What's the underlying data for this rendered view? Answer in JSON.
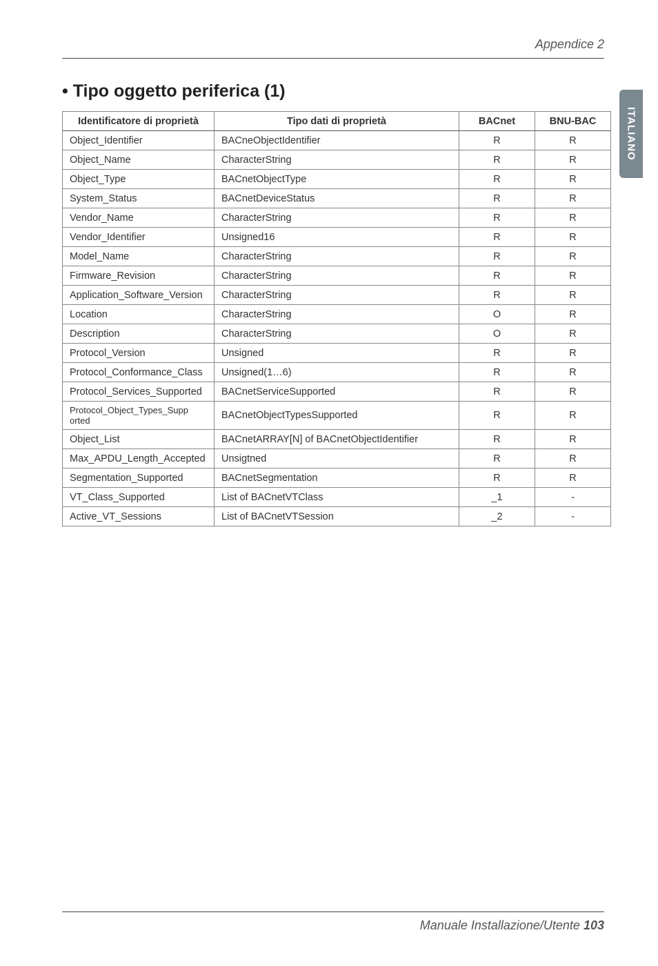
{
  "header": {
    "right": "Appendice 2"
  },
  "sideTab": {
    "label": "ITALIANO"
  },
  "section": {
    "title": "• Tipo oggetto periferica (1)"
  },
  "table": {
    "columns": [
      "Identificatore di proprietà",
      "Tipo dati di proprietà",
      "BACnet",
      "BNU-BAC"
    ],
    "rows": [
      [
        "Object_Identifier",
        "BACneObjectIdentifier",
        "R",
        "R"
      ],
      [
        "Object_Name",
        "CharacterString",
        "R",
        "R"
      ],
      [
        "Object_Type",
        "BACnetObjectType",
        "R",
        "R"
      ],
      [
        "System_Status",
        "BACnetDeviceStatus",
        "R",
        "R"
      ],
      [
        "Vendor_Name",
        "CharacterString",
        "R",
        "R"
      ],
      [
        "Vendor_Identifier",
        "Unsigned16",
        "R",
        "R"
      ],
      [
        "Model_Name",
        "CharacterString",
        "R",
        "R"
      ],
      [
        "Firmware_Revision",
        "CharacterString",
        "R",
        "R"
      ],
      [
        "Application_Software_Version",
        "CharacterString",
        "R",
        "R"
      ],
      [
        "Location",
        "CharacterString",
        "O",
        "R"
      ],
      [
        "Description",
        "CharacterString",
        "O",
        "R"
      ],
      [
        "Protocol_Version",
        "Unsigned",
        "R",
        "R"
      ],
      [
        "Protocol_Conformance_Class",
        "Unsigned(1…6)",
        "R",
        "R"
      ],
      [
        "Protocol_Services_Supported",
        "BACnetServiceSupported",
        "R",
        "R"
      ],
      [
        "Protocol_Object_Types_Supp orted",
        "BACnetObjectTypesSupported",
        "R",
        "R"
      ],
      [
        "Object_List",
        "BACnetARRAY[N] of BACnetObjectIdentifier",
        "R",
        "R"
      ],
      [
        "Max_APDU_Length_Accepted",
        "Unsigtned",
        "R",
        "R"
      ],
      [
        "Segmentation_Supported",
        "BACnetSegmentation",
        "R",
        "R"
      ],
      [
        "VT_Class_Supported",
        "List of BACnetVTClass",
        "_1",
        "-"
      ],
      [
        "Active_VT_Sessions",
        "List of BACnetVTSession",
        "_2",
        "-"
      ]
    ]
  },
  "footer": {
    "text": "Manuale Installazione/Utente ",
    "page": "103"
  }
}
